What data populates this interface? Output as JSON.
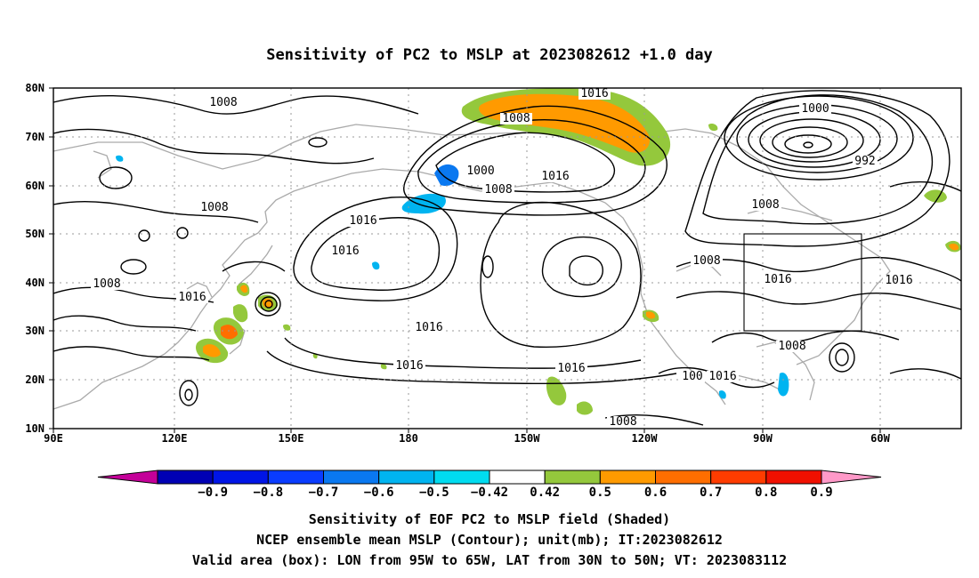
{
  "title": "Sensitivity of PC2 to MSLP at 2023082612 +1.0 day",
  "map": {
    "lon_ticks": [
      "90E",
      "120E",
      "150E",
      "180",
      "150W",
      "120W",
      "90W",
      "60W"
    ],
    "lat_ticks": [
      "80N",
      "70N",
      "60N",
      "50N",
      "40N",
      "30N",
      "20N",
      "10N"
    ],
    "lon_range": [
      "90E",
      "50W"
    ],
    "lat_range": [
      "10N",
      "80N"
    ],
    "grid": "dotted",
    "coastline_color": "#aaaaaa",
    "contour_color": "#000000",
    "contour_labels": [
      "1016",
      "1008",
      "1008",
      "1000",
      "1008",
      "1016",
      "1000",
      "992",
      "1008",
      "1016",
      "1008",
      "1016",
      "1008",
      "1016",
      "1008",
      "1016",
      "1016",
      "1016",
      "1016",
      "1016",
      "1016",
      "1016",
      "1016",
      "1008",
      "100",
      "1016",
      "1008"
    ],
    "valid_box": {
      "lon": [
        "95W",
        "65W"
      ],
      "lat": [
        "30N",
        "50N"
      ]
    }
  },
  "colorbar": {
    "labels": [
      "−0.9",
      "−0.8",
      "−0.7",
      "−0.6",
      "−0.5",
      "−0.42",
      "0.42",
      "0.5",
      "0.6",
      "0.7",
      "0.8",
      "0.9"
    ],
    "colors": [
      "#c40099",
      "#0000b4",
      "#0015e6",
      "#0a3cff",
      "#0a78f0",
      "#00b4f0",
      "#00dcf0",
      "#ffffff",
      "#94c83c",
      "#ff9a00",
      "#ff6e00",
      "#ff3c00",
      "#f01000",
      "#ff99c8"
    ]
  },
  "caption": [
    "Sensitivity of EOF PC2 to MSLP field (Shaded)",
    "NCEP ensemble mean MSLP (Contour); unit(mb); IT:2023082612",
    "Valid area (box): LON from 95W to 65W, LAT from 30N to 50N; VT: 2023083112"
  ]
}
